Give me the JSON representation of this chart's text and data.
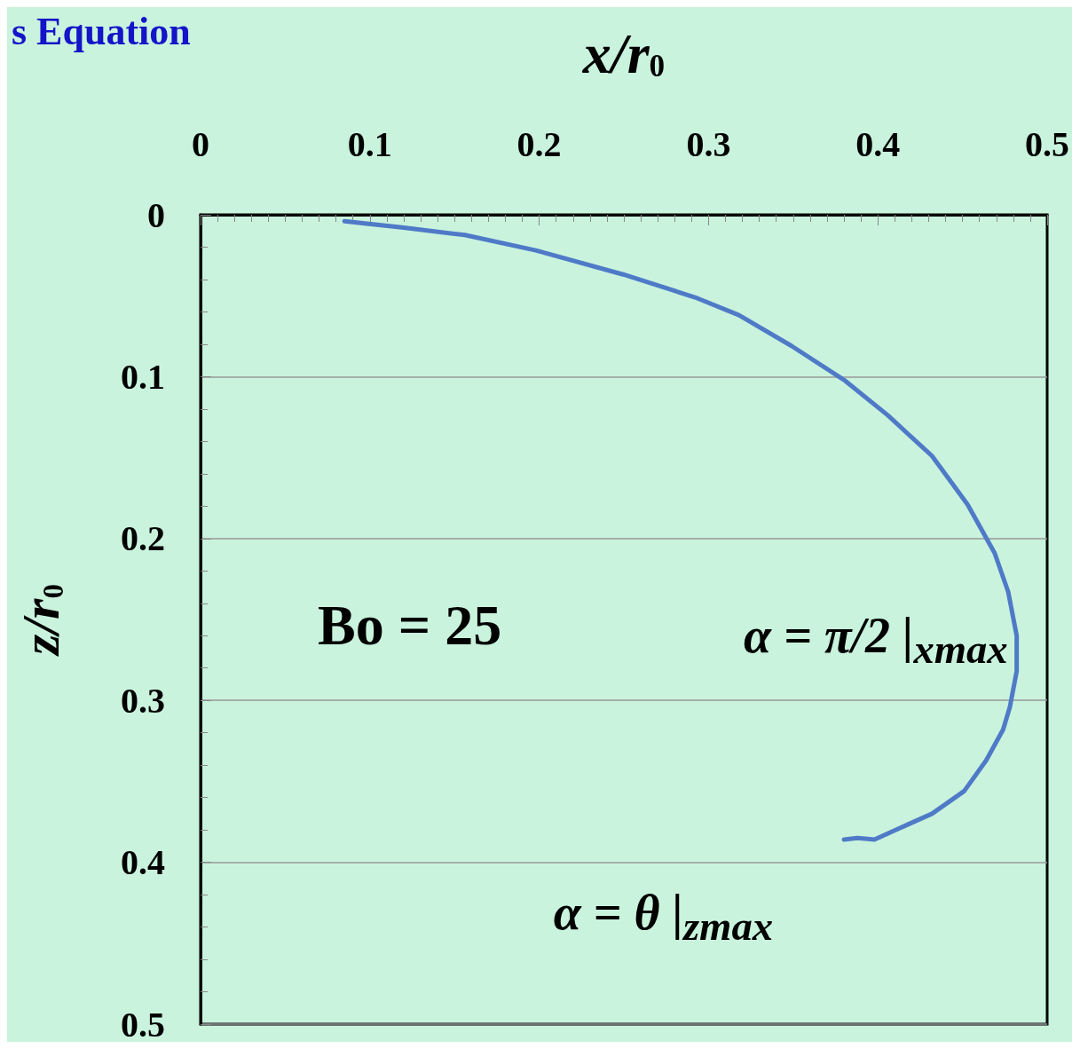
{
  "chart_data": {
    "type": "line",
    "title": "s Equation",
    "xlabel": "x/r$_{0}$",
    "ylabel": "z/r$_{0}$",
    "x": [
      0.085,
      0.12,
      0.156,
      0.198,
      0.25,
      0.292,
      0.318,
      0.349,
      0.38,
      0.406,
      0.432,
      0.453,
      0.469,
      0.477,
      0.482,
      0.482,
      0.478,
      0.474,
      0.464,
      0.451,
      0.432,
      0.417,
      0.398,
      0.388,
      0.38
    ],
    "series": [
      {
        "color": "#4f7ac7",
        "values": [
          0.004,
          0.008,
          0.0125,
          0.022,
          0.037,
          0.051,
          0.062,
          0.081,
          0.102,
          0.124,
          0.149,
          0.179,
          0.209,
          0.233,
          0.26,
          0.282,
          0.304,
          0.318,
          0.337,
          0.356,
          0.37,
          0.377,
          0.386,
          0.385,
          0.386
        ]
      }
    ],
    "xlim": [
      0,
      0.5
    ],
    "ylim": [
      0.5,
      0
    ],
    "xticks": [
      0,
      0.1,
      0.2,
      0.3,
      0.4,
      0.5
    ],
    "yticks": [
      0,
      0.1,
      0.2,
      0.3,
      0.4,
      0.5
    ],
    "grid": "y",
    "marker": "none",
    "line_style": "solid",
    "annotations": [
      "Bo = 25",
      {
        "text": "α = π/2 |$_{xmax}$",
        "x": 0.482,
        "y": 0.27
      },
      {
        "text": "α = θ |$_{zmax}$",
        "x": 0.38,
        "y": 0.386
      }
    ]
  }
}
